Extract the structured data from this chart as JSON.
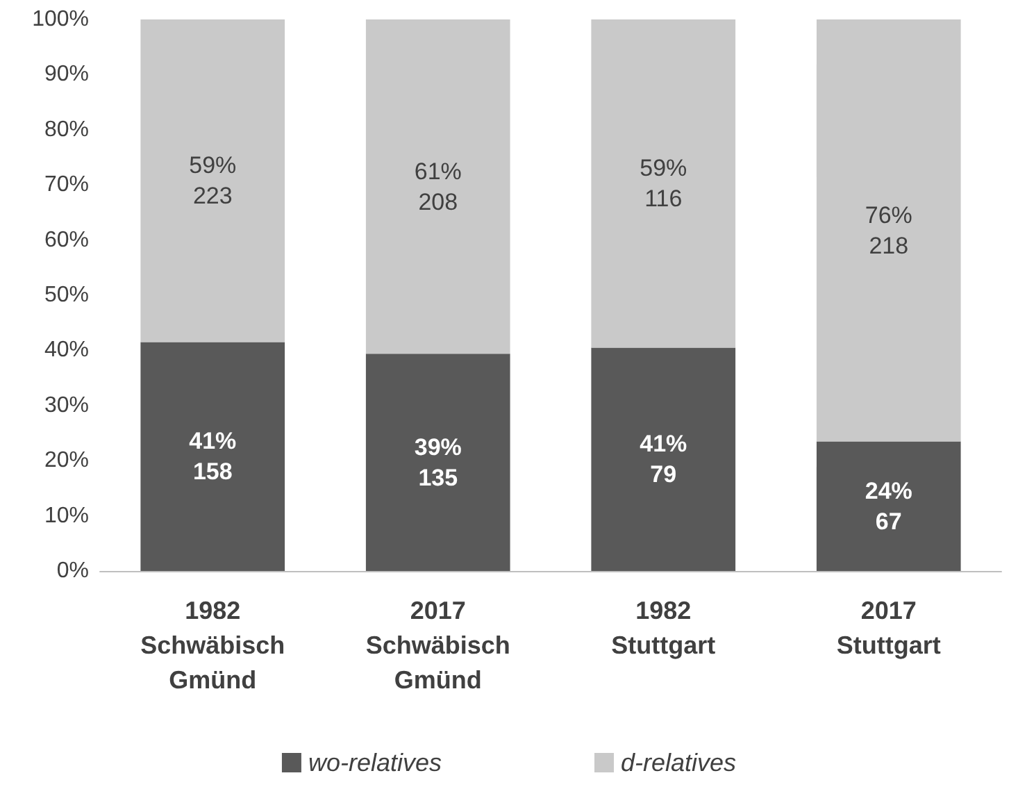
{
  "chart_data": {
    "type": "bar",
    "stacked": true,
    "categories": [
      "1982\nSchwäbisch\nGmünd",
      "2017\nSchwäbisch\nGmünd",
      "1982\nStuttgart",
      "2017\nStuttgart"
    ],
    "series": [
      {
        "name": "wo-relatives",
        "color": "#595959",
        "values": [
          41.5,
          39.4,
          40.5,
          23.5
        ],
        "value_labels": [
          "41%\n158",
          "39%\n135",
          "41%\n79",
          "24%\n67"
        ]
      },
      {
        "name": "d-relatives",
        "color": "#c9c9c9",
        "values": [
          58.5,
          60.6,
          59.5,
          76.5
        ],
        "value_labels": [
          "59%\n223",
          "61%\n208",
          "59%\n116",
          "76%\n218"
        ]
      }
    ],
    "ylim": [
      0,
      100
    ],
    "yticks": [
      {
        "value": 0,
        "label": "0%"
      },
      {
        "value": 10,
        "label": "10%"
      },
      {
        "value": 20,
        "label": "20%"
      },
      {
        "value": 30,
        "label": "30%"
      },
      {
        "value": 40,
        "label": "40%"
      },
      {
        "value": 50,
        "label": "50%"
      },
      {
        "value": 60,
        "label": "60%"
      },
      {
        "value": 70,
        "label": "70%"
      },
      {
        "value": 80,
        "label": "80%"
      },
      {
        "value": 90,
        "label": "90%"
      },
      {
        "value": 100,
        "label": "100%"
      }
    ],
    "grid": false,
    "legend": "bottom"
  }
}
